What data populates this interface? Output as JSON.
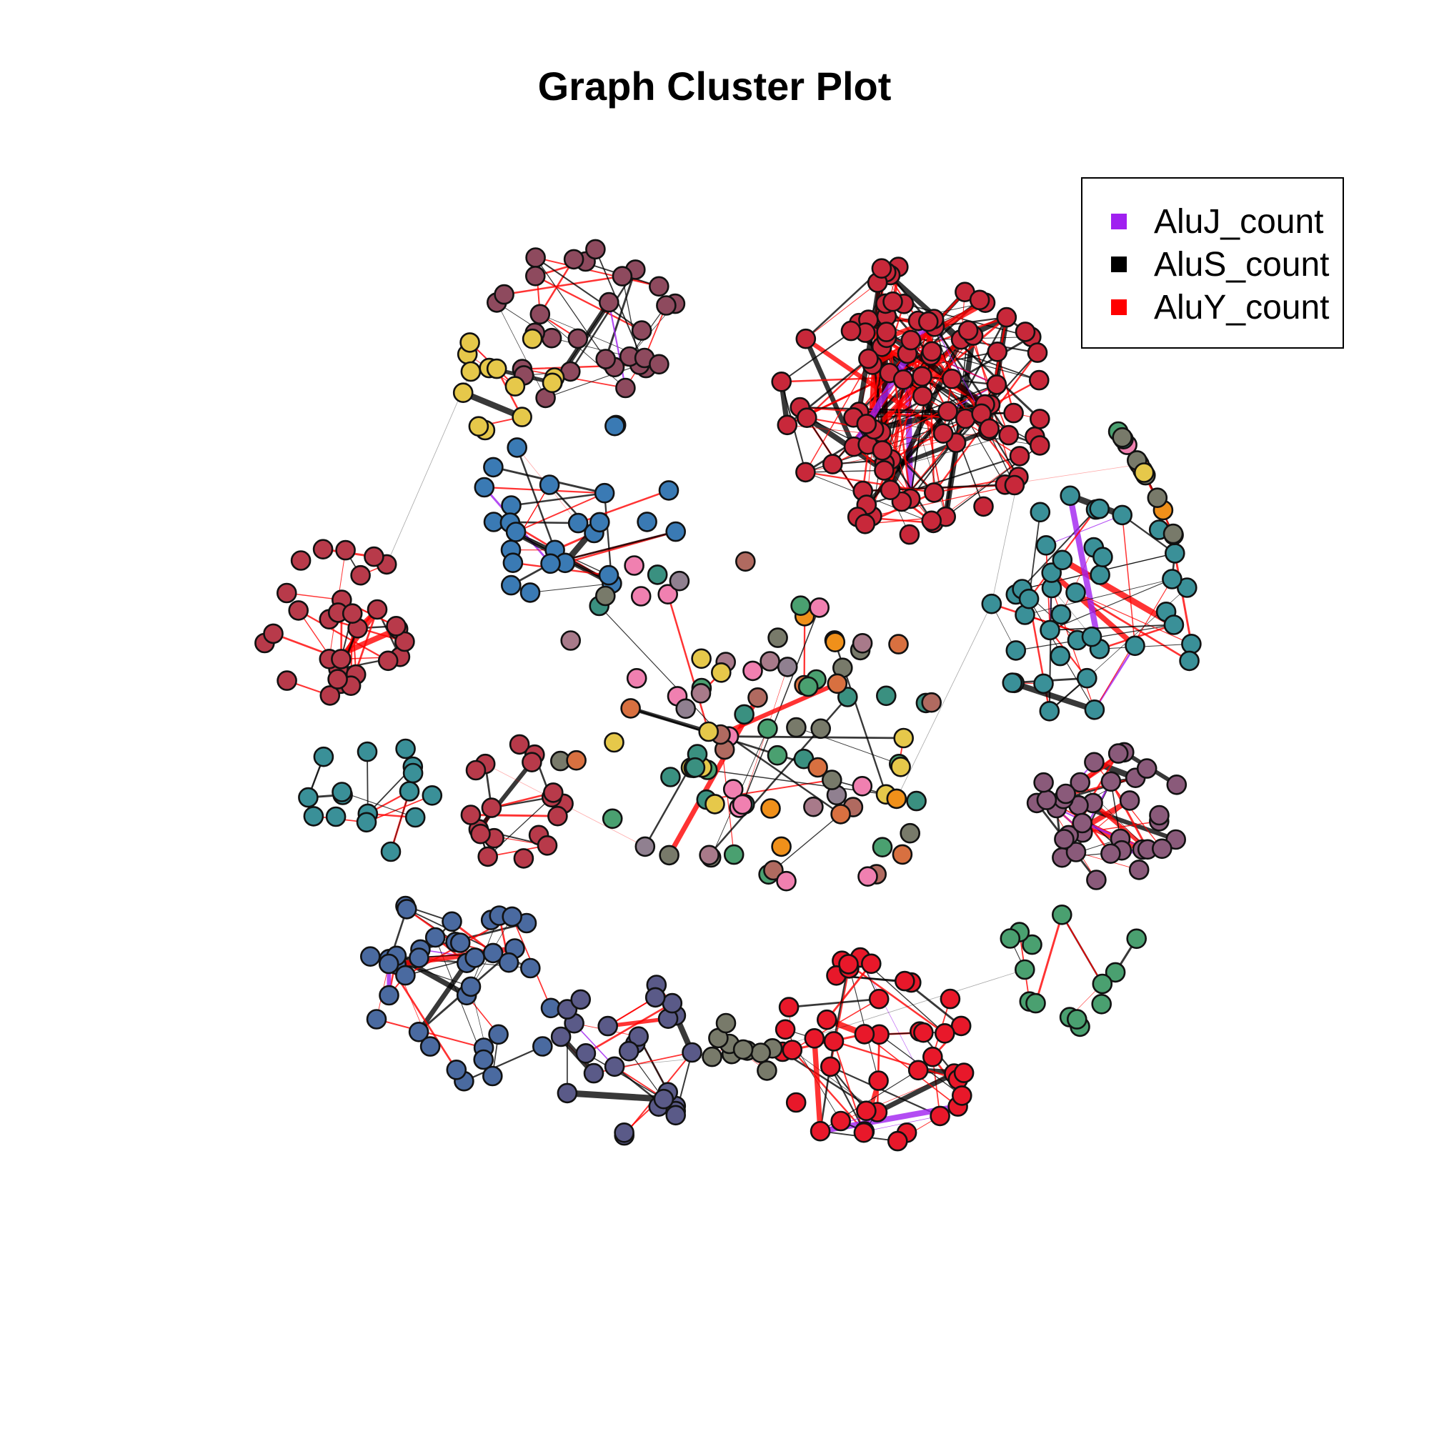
{
  "chart": {
    "title": "Graph Cluster Plot",
    "legend": {
      "placement": "top-right",
      "items": [
        {
          "label": "AluJ_count",
          "color": "#a020f0"
        },
        {
          "label": "AluS_count",
          "color": "#000000"
        },
        {
          "label": "AluY_count",
          "color": "#ff0000"
        }
      ]
    }
  },
  "chart_data": {
    "type": "network",
    "title": "Graph Cluster Plot",
    "edge_types": [
      "AluJ_count",
      "AluS_count",
      "AluY_count"
    ],
    "edge_colors": {
      "AluJ_count": "#a020f0",
      "AluS_count": "#000000",
      "AluY_count": "#ff0000"
    },
    "cluster_colors": [
      "#c8283a",
      "#8e4a5e",
      "#3a7ab4",
      "#e6c84a",
      "#4aa070",
      "#4a6aa0",
      "#5a5a88",
      "#e8182a",
      "#3a9098",
      "#8a5a7a",
      "#b83a4a",
      "#f0901a",
      "#787a6a",
      "#f080b0"
    ]
  }
}
